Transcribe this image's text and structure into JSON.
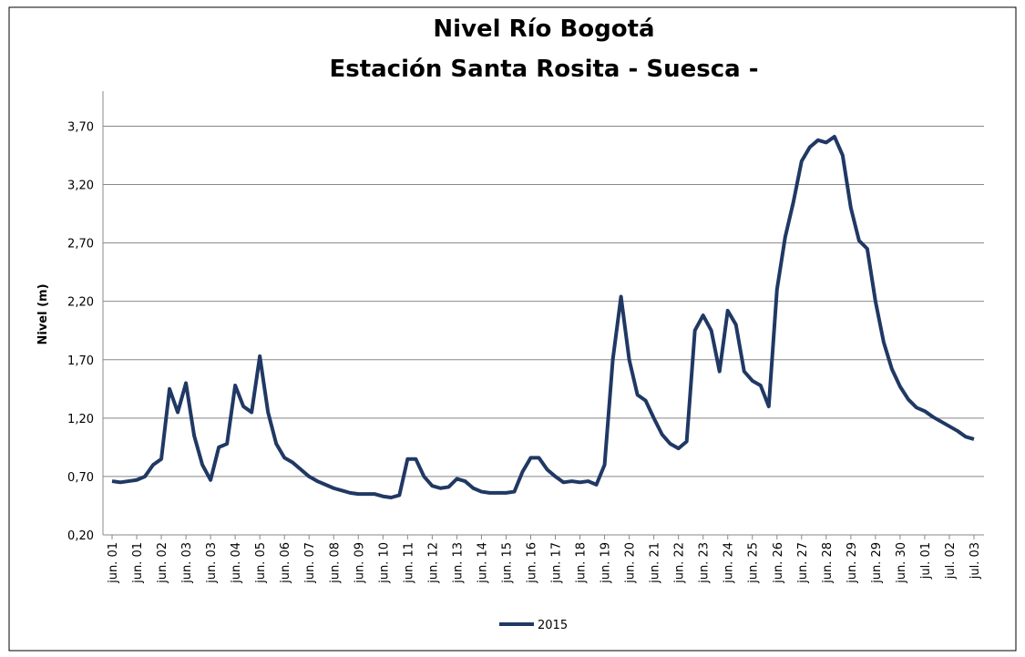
{
  "chart_data": {
    "type": "line",
    "title": "Nivel Río Bogotá",
    "subtitle": "Estación Santa Rosita - Suesca -",
    "y_label": "Nivel (m)",
    "categories": [
      "jun. 01",
      null,
      null,
      "jun. 01",
      null,
      null,
      "jun. 02",
      null,
      null,
      "jun. 03",
      null,
      null,
      "jun. 03",
      null,
      null,
      "jun. 04",
      null,
      null,
      "jun. 05",
      null,
      null,
      "jun. 06",
      null,
      null,
      "jun. 07",
      null,
      null,
      "jun. 08",
      null,
      null,
      "jun. 09",
      null,
      null,
      "jun. 10",
      null,
      null,
      "jun. 11",
      null,
      null,
      "jun. 12",
      null,
      null,
      "jun. 13",
      null,
      null,
      "jun. 14",
      null,
      null,
      "jun. 15",
      null,
      null,
      "jun. 16",
      null,
      null,
      "jun. 17",
      null,
      null,
      "jun. 18",
      null,
      null,
      "jun. 19",
      null,
      null,
      "jun. 20",
      null,
      null,
      "jun. 21",
      null,
      null,
      "jun. 22",
      null,
      null,
      "jun. 23",
      null,
      null,
      "jun. 24",
      null,
      null,
      "jun. 25",
      null,
      null,
      "jun. 26",
      null,
      null,
      "jun. 27",
      null,
      null,
      "jun. 28",
      null,
      null,
      "jun. 29",
      null,
      null,
      "jun. 29",
      null,
      null,
      "jun. 30",
      null,
      null,
      "jul. 01",
      null,
      null,
      "jul. 02",
      null,
      null,
      "jul. 03"
    ],
    "series": [
      {
        "name": "2015",
        "color": "#203864",
        "values": [
          0.66,
          0.65,
          0.66,
          0.67,
          0.7,
          0.8,
          0.85,
          1.45,
          1.25,
          1.5,
          1.05,
          0.8,
          0.67,
          0.95,
          0.98,
          1.48,
          1.3,
          1.25,
          1.73,
          1.25,
          0.98,
          0.86,
          0.82,
          0.76,
          0.7,
          0.66,
          0.63,
          0.6,
          0.58,
          0.56,
          0.55,
          0.55,
          0.55,
          0.53,
          0.52,
          0.54,
          0.85,
          0.85,
          0.7,
          0.62,
          0.6,
          0.61,
          0.68,
          0.66,
          0.6,
          0.57,
          0.56,
          0.56,
          0.56,
          0.57,
          0.74,
          0.86,
          0.86,
          0.76,
          0.7,
          0.65,
          0.66,
          0.65,
          0.66,
          0.63,
          0.8,
          1.7,
          2.24,
          1.7,
          1.4,
          1.35,
          1.2,
          1.06,
          0.98,
          0.94,
          1.0,
          1.95,
          2.08,
          1.95,
          1.6,
          2.12,
          2.0,
          1.6,
          1.52,
          1.48,
          1.3,
          2.3,
          2.75,
          3.05,
          3.4,
          3.52,
          3.58,
          3.56,
          3.61,
          3.45,
          3.0,
          2.72,
          2.65,
          2.2,
          1.85,
          1.62,
          1.47,
          1.36,
          1.29,
          1.26,
          1.21,
          1.17,
          1.13,
          1.09,
          1.04,
          1.02
        ]
      }
    ],
    "ylim": [
      0.2,
      4.0
    ],
    "yticks": [
      {
        "value": 0.2,
        "label": "0,20"
      },
      {
        "value": 0.7,
        "label": "0,70"
      },
      {
        "value": 1.2,
        "label": "1,20"
      },
      {
        "value": 1.7,
        "label": "1,70"
      },
      {
        "value": 2.2,
        "label": "2,20"
      },
      {
        "value": 2.7,
        "label": "2,70"
      },
      {
        "value": 3.2,
        "label": "3,20"
      },
      {
        "value": 3.7,
        "label": "3,70"
      }
    ],
    "grid": true
  }
}
